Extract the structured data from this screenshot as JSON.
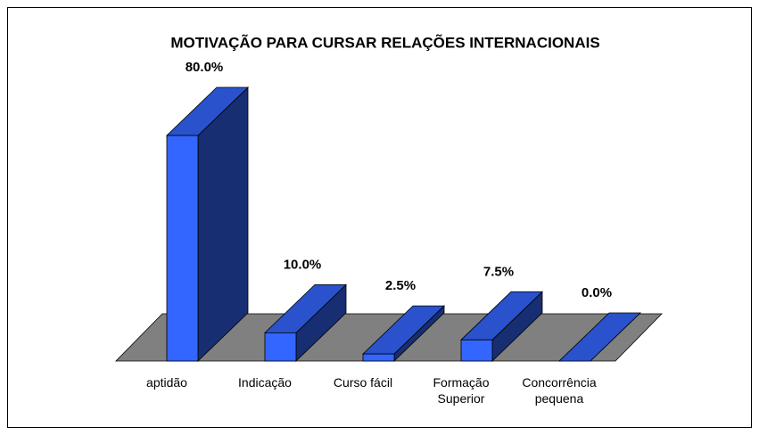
{
  "chart_data": {
    "type": "bar3d",
    "title": "MOTIVAÇÃO PARA CURSAR RELAÇÕES INTERNACIONAIS",
    "categories": [
      "aptidão",
      "Indicação",
      "Curso fácil",
      "Formação Superior",
      "Concorrência pequena"
    ],
    "values": [
      80,
      10,
      2.5,
      7.5,
      0
    ],
    "value_labels": [
      "80.0%",
      "10.0%",
      "2.5%",
      "7.5%",
      "0.0%"
    ],
    "color": "#3366ff",
    "floor_color": "#808080"
  }
}
